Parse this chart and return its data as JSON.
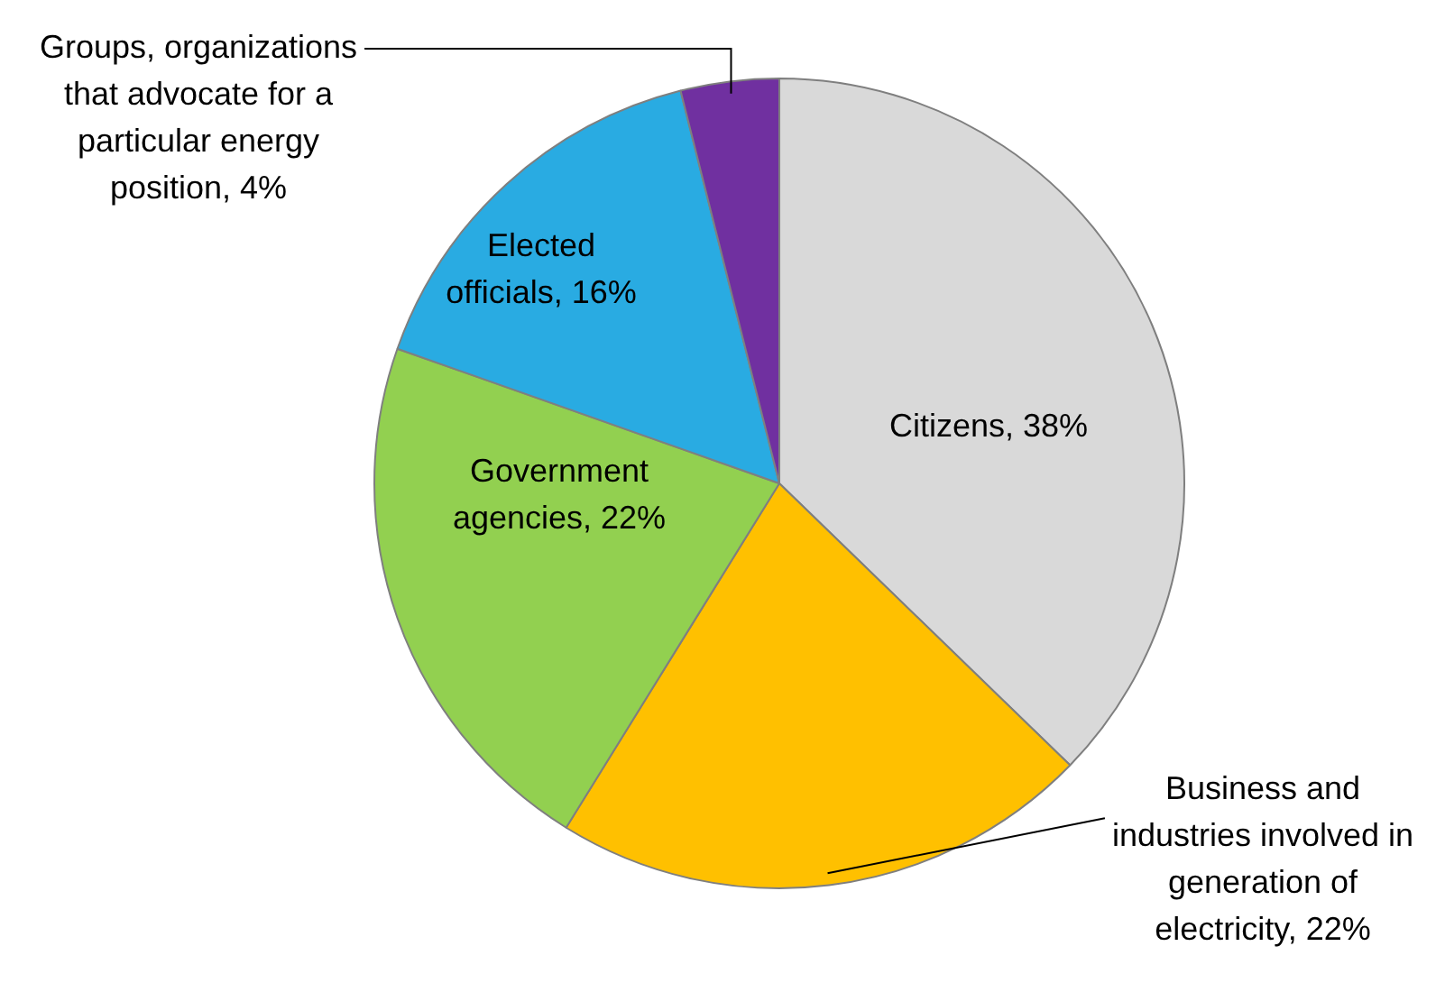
{
  "chart_data": {
    "type": "pie",
    "categories": [
      "Citizens, 38%",
      "Business and industries involved in generation of electricity, 22%",
      "Government agencies, 22%",
      "Elected officials, 16%",
      "Groups, organizations that advocate for a particular energy position, 4%"
    ],
    "values": [
      38,
      22,
      22,
      16,
      4
    ],
    "colors": [
      "#d9d9d9",
      "#ffc000",
      "#92d050",
      "#29abe2",
      "#7030a0"
    ],
    "legend": false
  }
}
